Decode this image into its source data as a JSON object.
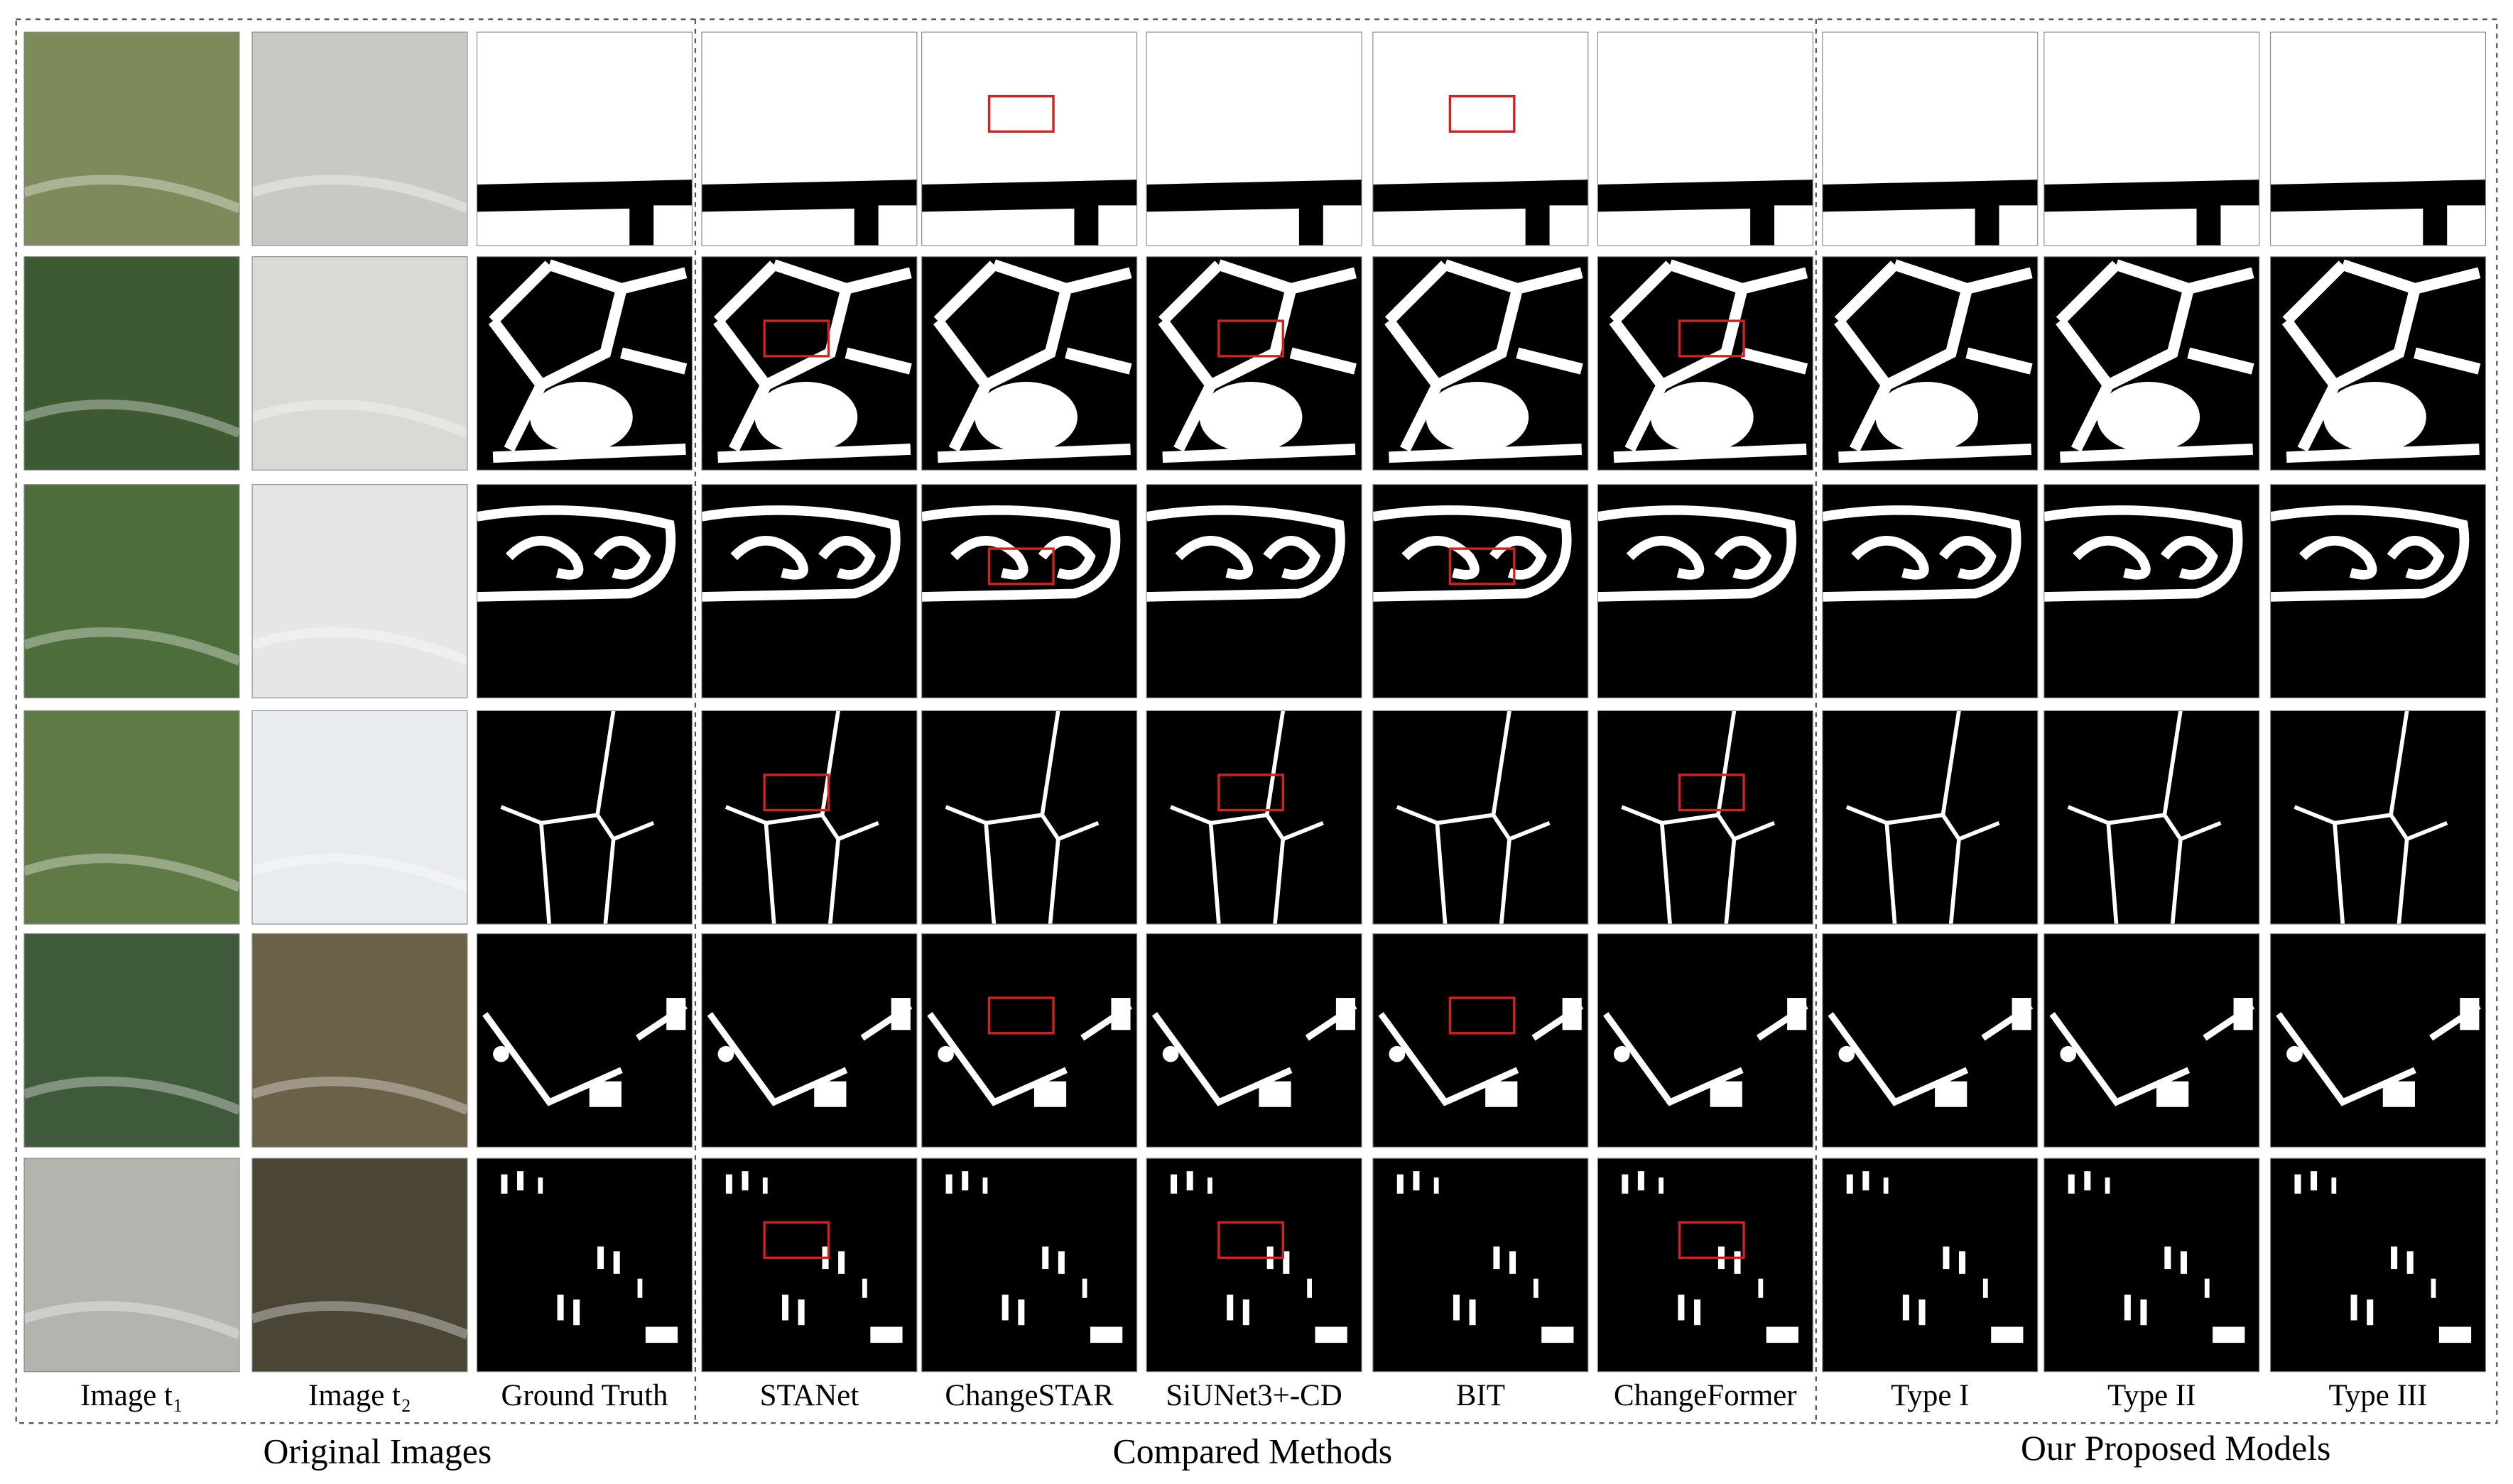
{
  "columns": [
    "Image t₁",
    "Image t₂",
    "Ground Truth",
    "STANet",
    "ChangeSTAR",
    "SiUNet3+-CD",
    "BIT",
    "ChangeFormer",
    "Type I",
    "Type II",
    "Type III"
  ],
  "groups": [
    "Original Images",
    "Compared Methods",
    "Our Proposed Models"
  ]
}
